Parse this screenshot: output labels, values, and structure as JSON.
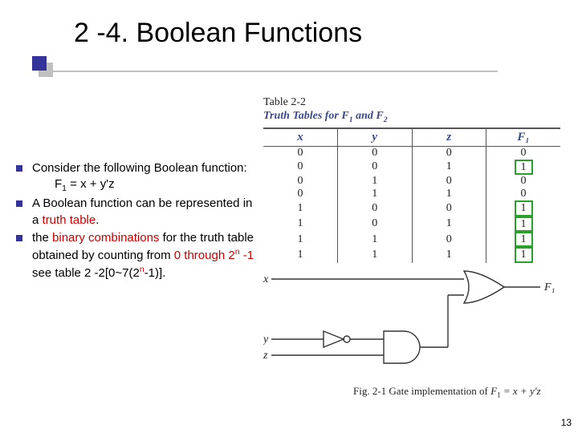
{
  "title": "2 -4. Boolean Functions",
  "bullets": [
    {
      "lead": "Consider the following Boolean function:",
      "formula_prefix": "F",
      "formula_sub": "1",
      "formula_rest": " = x + y'z"
    },
    {
      "text_plain": "A Boolean function can be represented in a ",
      "text_red": "truth table",
      "text_tail": "."
    },
    {
      "text_a": "the ",
      "text_red1": "binary combinations",
      "text_b": " for the truth table obtained by counting from ",
      "text_red2": "0 through 2",
      "sup1": "n",
      "text_red3": " -1",
      "text_c": " see table 2 -2[0~7(2",
      "sup2": "n",
      "text_d": "-1)]."
    }
  ],
  "table": {
    "caption": "Table 2-2",
    "subcaption_a": "Truth Tables for F",
    "subcaption_sub1": "1",
    "subcaption_b": " and F",
    "subcaption_sub2": "2",
    "headers": [
      "x",
      "y",
      "z",
      "F₁"
    ],
    "rows": [
      [
        "0",
        "0",
        "0",
        "0"
      ],
      [
        "0",
        "0",
        "1",
        "1"
      ],
      [
        "0",
        "1",
        "0",
        "0"
      ],
      [
        "0",
        "1",
        "1",
        "0"
      ],
      [
        "1",
        "0",
        "0",
        "1"
      ],
      [
        "1",
        "0",
        "1",
        "1"
      ],
      [
        "1",
        "1",
        "0",
        "1"
      ],
      [
        "1",
        "1",
        "1",
        "1"
      ]
    ],
    "highlight_rows": [
      1,
      4,
      5,
      6,
      7
    ],
    "colors": {
      "border": "#555555",
      "header_text": "#3a4a8a",
      "highlight_border": "#2ca02c"
    }
  },
  "circuit": {
    "labels": {
      "x": "x",
      "y": "y",
      "z": "z",
      "out": "F₁"
    },
    "stroke": "#333333"
  },
  "figure_caption_a": "Fig. 2-1  Gate implementation of ",
  "figure_caption_b": "F",
  "figure_caption_sub": "1",
  "figure_caption_c": " = x + y'z",
  "page_number": "13"
}
